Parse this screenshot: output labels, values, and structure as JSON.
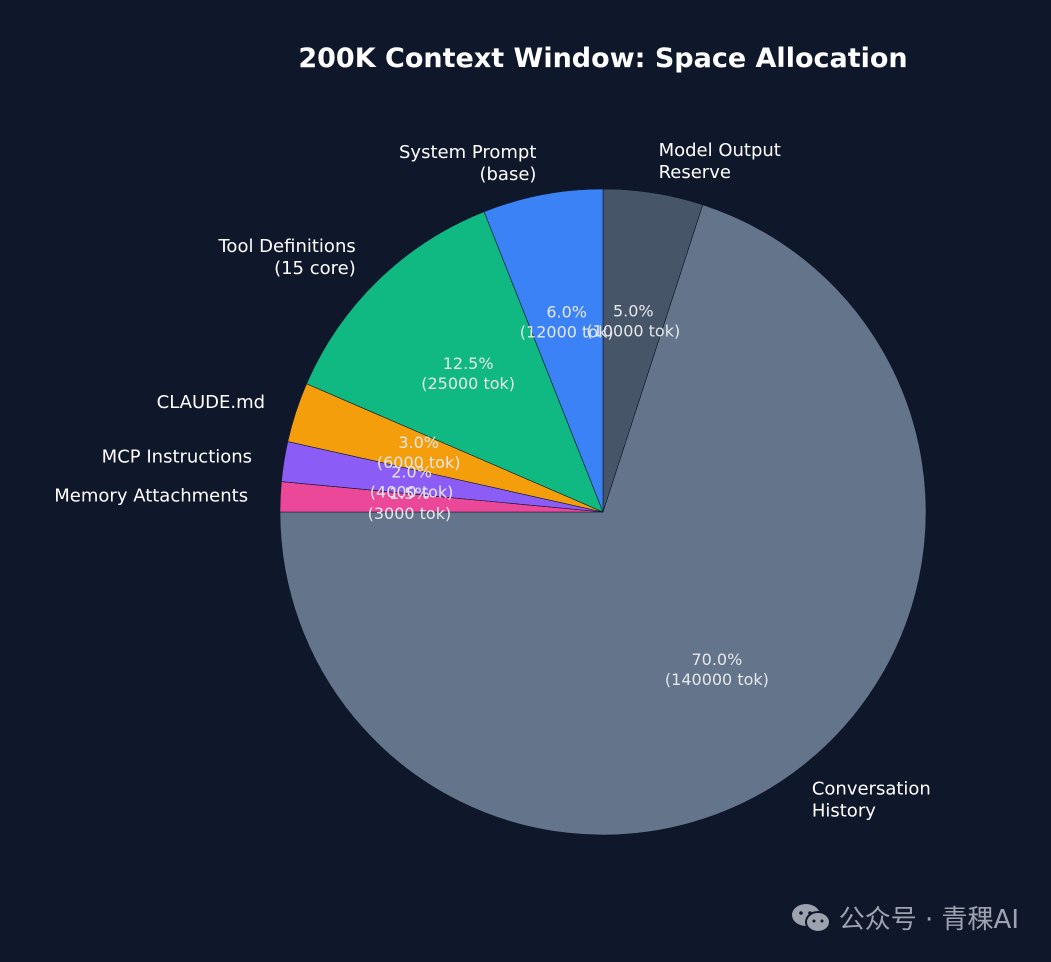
{
  "chart_data": {
    "type": "pie",
    "title": "200K Context Window: Space Allocation",
    "start_angle_deg": 90,
    "direction": "clockwise",
    "slices": [
      {
        "label_lines": [
          "Model Output",
          "Reserve"
        ],
        "percent": 5.0,
        "percent_label": "5.0%",
        "tokens_label": "(10000 tok)",
        "color": "#475569"
      },
      {
        "label_lines": [
          "Conversation",
          "History"
        ],
        "percent": 70.0,
        "percent_label": "70.0%",
        "tokens_label": "(140000 tok)",
        "color": "#64748b"
      },
      {
        "label_lines": [
          "Memory Attachments"
        ],
        "percent": 1.5,
        "percent_label": "1.5%",
        "tokens_label": "(3000 tok)",
        "color": "#ec4899"
      },
      {
        "label_lines": [
          "MCP Instructions"
        ],
        "percent": 2.0,
        "percent_label": "2.0%",
        "tokens_label": "(4000 tok)",
        "color": "#8b5cf6"
      },
      {
        "label_lines": [
          "CLAUDE.md"
        ],
        "percent": 3.0,
        "percent_label": "3.0%",
        "tokens_label": "(6000 tok)",
        "color": "#f59e0b"
      },
      {
        "label_lines": [
          "Tool Definitions",
          "(15 core)"
        ],
        "percent": 12.5,
        "percent_label": "12.5%",
        "tokens_label": "(25000 tok)",
        "color": "#10b981"
      },
      {
        "label_lines": [
          "System Prompt",
          "(base)"
        ],
        "percent": 6.0,
        "percent_label": "6.0%",
        "tokens_label": "(12000 tok)",
        "color": "#3b82f6"
      }
    ]
  },
  "watermark": {
    "text": "公众号 · 青稞AI",
    "icon": "wechat-icon"
  }
}
